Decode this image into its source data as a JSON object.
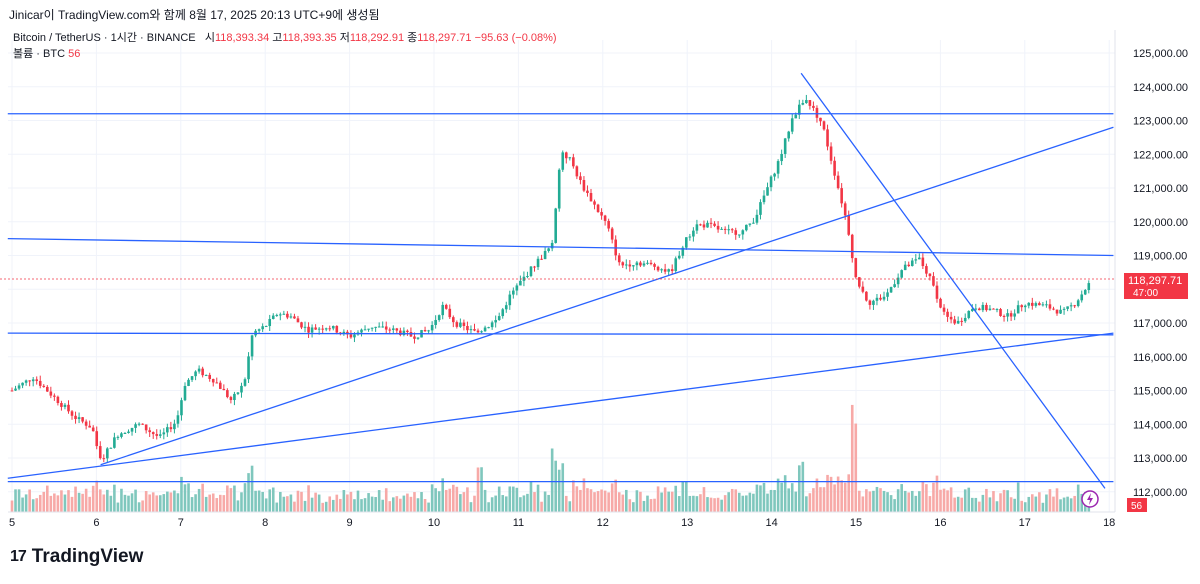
{
  "header": {
    "attribution": "Jinicar이 TradingView.com와 함께 8월 17, 2025 20:13 UTC+9에 생성됨"
  },
  "legend": {
    "symbol": "Bitcoin / TetherUS · 1시간 · BINANCE",
    "open_label": "시",
    "open": "118,393.34",
    "high_label": "고",
    "high": "118,393.35",
    "low_label": "저",
    "low": "118,292.91",
    "close_label": "종",
    "close": "118,297.71",
    "change": "−95.63 (−0.08%)",
    "volume_label": "볼륨 · BTC",
    "volume_value": "56"
  },
  "footer": {
    "brand": "TradingView",
    "logo_glyph": "17"
  },
  "colors": {
    "up": "#22ab94",
    "down": "#f23645",
    "trendline": "#2962ff",
    "up_vol": "#7fc7bd",
    "down_vol": "#f7a9a7"
  },
  "chart_data": {
    "type": "candlestick",
    "symbol": "BTCUSDT",
    "interval": "1h",
    "x_ticks": [
      "5",
      "6",
      "7",
      "8",
      "9",
      "10",
      "11",
      "12",
      "13",
      "14",
      "15",
      "16",
      "17",
      "18"
    ],
    "y_ticks": [
      "125,000.00",
      "124,000.00",
      "123,000.00",
      "122,000.00",
      "121,000.00",
      "120,000.00",
      "119,000.00",
      "118,000.00",
      "117,000.00",
      "116,000.00",
      "115,000.00",
      "114,000.00",
      "113,000.00",
      "112,000.00"
    ],
    "ylim": [
      111600,
      125400
    ],
    "xlim": [
      4.95,
      18.05
    ],
    "last_price": "118,297.71",
    "countdown": "47:00",
    "volume_badge": "56",
    "close_path": [
      [
        5.0,
        115000
      ],
      [
        5.25,
        115400
      ],
      [
        5.5,
        114800
      ],
      [
        5.75,
        114200
      ],
      [
        5.95,
        113900
      ],
      [
        6.05,
        112900
      ],
      [
        6.25,
        113700
      ],
      [
        6.5,
        114000
      ],
      [
        6.75,
        113600
      ],
      [
        6.95,
        114100
      ],
      [
        7.05,
        115200
      ],
      [
        7.2,
        115600
      ],
      [
        7.4,
        115300
      ],
      [
        7.6,
        114700
      ],
      [
        7.75,
        115200
      ],
      [
        7.85,
        116700
      ],
      [
        8.0,
        116900
      ],
      [
        8.15,
        117300
      ],
      [
        8.3,
        117200
      ],
      [
        8.5,
        116800
      ],
      [
        8.75,
        116900
      ],
      [
        9.0,
        116600
      ],
      [
        9.25,
        116900
      ],
      [
        9.5,
        116800
      ],
      [
        9.75,
        116600
      ],
      [
        9.95,
        116800
      ],
      [
        10.1,
        117500
      ],
      [
        10.25,
        117000
      ],
      [
        10.5,
        116700
      ],
      [
        10.75,
        117100
      ],
      [
        10.9,
        117800
      ],
      [
        11.05,
        118300
      ],
      [
        11.25,
        118900
      ],
      [
        11.4,
        119300
      ],
      [
        11.5,
        122000
      ],
      [
        11.6,
        121900
      ],
      [
        11.75,
        121100
      ],
      [
        11.9,
        120500
      ],
      [
        12.05,
        119900
      ],
      [
        12.2,
        118700
      ],
      [
        12.4,
        118800
      ],
      [
        12.6,
        118700
      ],
      [
        12.8,
        118500
      ],
      [
        12.95,
        119300
      ],
      [
        13.1,
        119900
      ],
      [
        13.25,
        119900
      ],
      [
        13.45,
        119700
      ],
      [
        13.65,
        119700
      ],
      [
        13.8,
        120100
      ],
      [
        13.95,
        121000
      ],
      [
        14.1,
        121900
      ],
      [
        14.25,
        123100
      ],
      [
        14.4,
        123700
      ],
      [
        14.6,
        122900
      ],
      [
        14.75,
        121400
      ],
      [
        14.9,
        119900
      ],
      [
        15.0,
        118300
      ],
      [
        15.15,
        117600
      ],
      [
        15.35,
        117800
      ],
      [
        15.55,
        118600
      ],
      [
        15.75,
        118900
      ],
      [
        15.9,
        118200
      ],
      [
        16.05,
        117200
      ],
      [
        16.2,
        117000
      ],
      [
        16.4,
        117500
      ],
      [
        16.6,
        117400
      ],
      [
        16.8,
        117200
      ],
      [
        17.0,
        117600
      ],
      [
        17.25,
        117500
      ],
      [
        17.45,
        117300
      ],
      [
        17.6,
        117600
      ],
      [
        17.8,
        118300
      ]
    ],
    "trendlines": [
      {
        "name": "",
        "from": [
          4.95,
          123200
        ],
        "to": [
          18.05,
          123200
        ]
      },
      {
        "name": "",
        "from": [
          4.95,
          119500
        ],
        "to": [
          18.05,
          119000
        ]
      },
      {
        "name": "",
        "from": [
          4.95,
          116700
        ],
        "to": [
          18.05,
          116650
        ]
      },
      {
        "name": "",
        "from": [
          4.95,
          112300
        ],
        "to": [
          18.05,
          112300
        ]
      },
      {
        "name": "",
        "from": [
          6.05,
          112800
        ],
        "to": [
          18.05,
          122800
        ]
      },
      {
        "name": "",
        "from": [
          4.95,
          112400
        ],
        "to": [
          18.05,
          116700
        ]
      },
      {
        "name": "",
        "from": [
          14.35,
          124400
        ],
        "to": [
          17.95,
          112100
        ]
      }
    ]
  }
}
